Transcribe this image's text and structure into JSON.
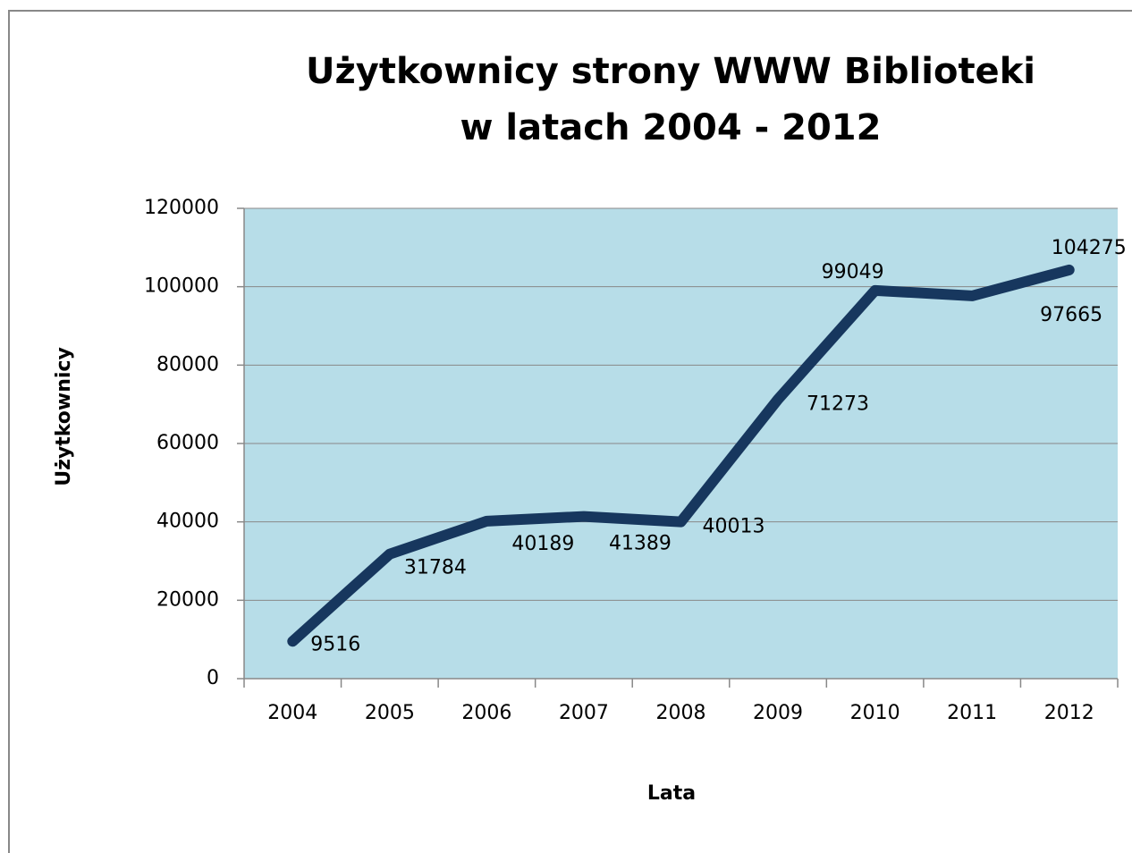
{
  "chart_data": {
    "type": "line",
    "title": [
      "Użytkownicy strony WWW Biblioteki",
      "w latach 2004 - 2012"
    ],
    "x_label": "Lata",
    "y_label": "Użytkownicy",
    "categories": [
      "2004",
      "2005",
      "2006",
      "2007",
      "2008",
      "2009",
      "2010",
      "2011",
      "2012"
    ],
    "series": [
      {
        "color": "#17375e",
        "values": [
          9516,
          31784,
          40189,
          41389,
          40013,
          71273,
          99049,
          97665,
          104275
        ]
      }
    ],
    "ylim": [
      0,
      120000
    ],
    "yticks": [
      0,
      20000,
      40000,
      60000,
      80000,
      100000,
      120000
    ],
    "grid": true,
    "plot_background": "#b7dde8"
  }
}
